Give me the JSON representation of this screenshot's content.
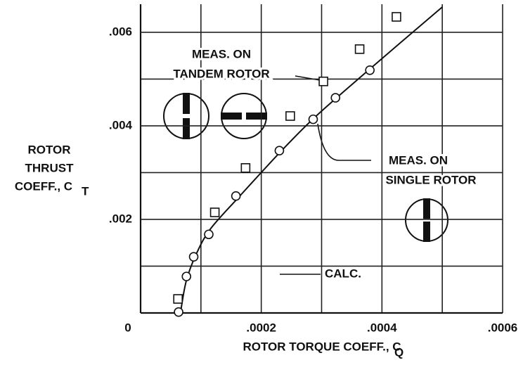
{
  "chart_data": {
    "type": "scatter",
    "xlim": [
      0,
      0.0006
    ],
    "ylim": [
      0,
      0.0066
    ],
    "xticks": [
      {
        "value": 0,
        "label": "0"
      },
      {
        "value": 0.0002,
        "label": ".0002"
      },
      {
        "value": 0.0004,
        "label": ".0004"
      },
      {
        "value": 0.0006,
        "label": ".0006"
      }
    ],
    "yticks": [
      {
        "value": 0.002,
        "label": ".002"
      },
      {
        "value": 0.004,
        "label": ".004"
      },
      {
        "value": 0.006,
        "label": ".006"
      }
    ],
    "xminor": [
      0.0001,
      0.0003,
      0.0005
    ],
    "yminor": [
      0.001,
      0.003,
      0.005
    ],
    "grid": true,
    "x_label": "ROTOR TORQUE COEFF., C",
    "x_label_subscript": "Q",
    "y_label_lines": [
      "ROTOR",
      "THRUST"
    ],
    "y_label_symbol": "COEFF., C",
    "y_label_subscript": "T",
    "series": [
      {
        "marker": "circle",
        "color": "#111",
        "x": [
          6.3e-05,
          7.6e-05,
          8.8e-05,
          0.000113,
          0.000158,
          0.00023,
          0.000286,
          0.000323,
          0.00038
        ],
        "values": [
          2e-05,
          0.00078,
          0.0012,
          0.00168,
          0.0025,
          0.00347,
          0.00414,
          0.0046,
          0.00519
        ]
      },
      {
        "marker": "square",
        "color": "#111",
        "x": [
          6.2e-05,
          0.000123,
          0.000174,
          0.000248,
          0.000303,
          0.000363,
          0.000424
        ],
        "values": [
          0.0003,
          0.00215,
          0.0031,
          0.00421,
          0.00495,
          0.00564,
          0.00633
        ]
      },
      {
        "marker": "line",
        "color": "#111",
        "x": [
          6.7e-05,
          7.6e-05,
          9.3e-05,
          0.000116,
          0.000163,
          0.000233,
          0.000291,
          0.000384,
          0.0005
        ],
        "values": [
          8e-05,
          0.0007,
          0.00128,
          0.0018,
          0.00248,
          0.00346,
          0.00421,
          0.00526,
          0.00654
        ]
      }
    ],
    "annotations": [
      {
        "lines": [
          "MEAS. ON",
          "TANDEM ROTOR"
        ]
      },
      {
        "lines": [
          "MEAS. ON",
          "SINGLE ROTOR"
        ]
      },
      {
        "lines": [
          "CALC."
        ]
      }
    ]
  }
}
